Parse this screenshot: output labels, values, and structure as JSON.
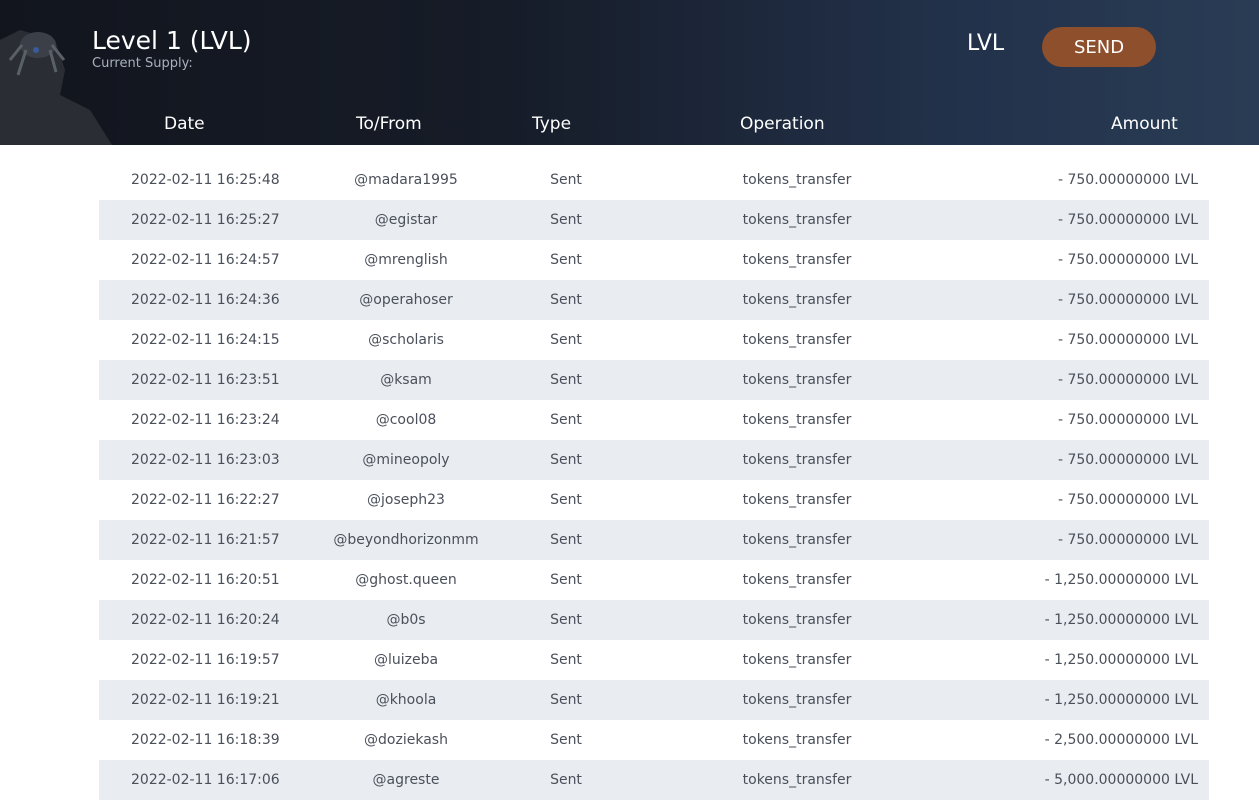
{
  "header": {
    "title": "Level 1 (LVL)",
    "supply_label": "Current Supply:",
    "symbol": "LVL",
    "send_label": "SEND",
    "accent": "#8e4f2c"
  },
  "columns": [
    "Date",
    "To/From",
    "Type",
    "Operation",
    "Amount"
  ],
  "rows": [
    [
      "2022-02-11 16:25:48",
      "@madara1995",
      "Sent",
      "tokens_transfer",
      "- 750.00000000 LVL"
    ],
    [
      "2022-02-11 16:25:27",
      "@egistar",
      "Sent",
      "tokens_transfer",
      "- 750.00000000 LVL"
    ],
    [
      "2022-02-11 16:24:57",
      "@mrenglish",
      "Sent",
      "tokens_transfer",
      "- 750.00000000 LVL"
    ],
    [
      "2022-02-11 16:24:36",
      "@operahoser",
      "Sent",
      "tokens_transfer",
      "- 750.00000000 LVL"
    ],
    [
      "2022-02-11 16:24:15",
      "@scholaris",
      "Sent",
      "tokens_transfer",
      "- 750.00000000 LVL"
    ],
    [
      "2022-02-11 16:23:51",
      "@ksam",
      "Sent",
      "tokens_transfer",
      "- 750.00000000 LVL"
    ],
    [
      "2022-02-11 16:23:24",
      "@cool08",
      "Sent",
      "tokens_transfer",
      "- 750.00000000 LVL"
    ],
    [
      "2022-02-11 16:23:03",
      "@mineopoly",
      "Sent",
      "tokens_transfer",
      "- 750.00000000 LVL"
    ],
    [
      "2022-02-11 16:22:27",
      "@joseph23",
      "Sent",
      "tokens_transfer",
      "- 750.00000000 LVL"
    ],
    [
      "2022-02-11 16:21:57",
      "@beyondhorizonmm",
      "Sent",
      "tokens_transfer",
      "- 750.00000000 LVL"
    ],
    [
      "2022-02-11 16:20:51",
      "@ghost.queen",
      "Sent",
      "tokens_transfer",
      "- 1,250.00000000 LVL"
    ],
    [
      "2022-02-11 16:20:24",
      "@b0s",
      "Sent",
      "tokens_transfer",
      "- 1,250.00000000 LVL"
    ],
    [
      "2022-02-11 16:19:57",
      "@luizeba",
      "Sent",
      "tokens_transfer",
      "- 1,250.00000000 LVL"
    ],
    [
      "2022-02-11 16:19:21",
      "@khoola",
      "Sent",
      "tokens_transfer",
      "- 1,250.00000000 LVL"
    ],
    [
      "2022-02-11 16:18:39",
      "@doziekash",
      "Sent",
      "tokens_transfer",
      "- 2,500.00000000 LVL"
    ],
    [
      "2022-02-11 16:17:06",
      "@agreste",
      "Sent",
      "tokens_transfer",
      "- 5,000.00000000 LVL"
    ]
  ]
}
